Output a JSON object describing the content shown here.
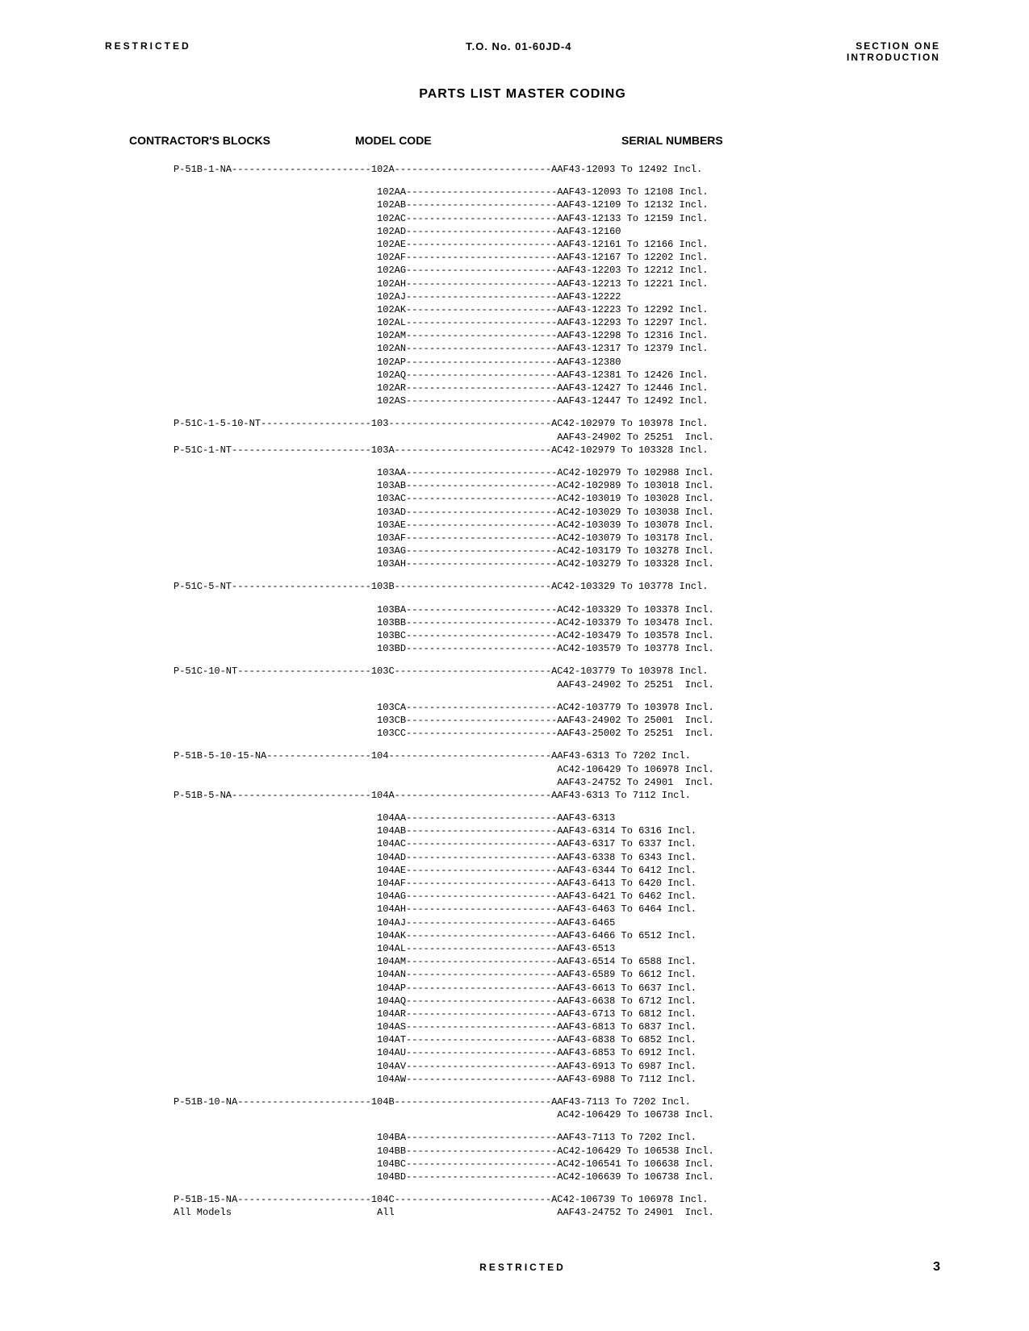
{
  "header": {
    "restricted": "RESTRICTED",
    "to_no": "T.O. No. 01-60JD-4",
    "section": "SECTION ONE",
    "intro": "INTRODUCTION"
  },
  "title": "PARTS LIST MASTER CODING",
  "columns": {
    "contractor": "CONTRACTOR'S BLOCKS",
    "model": "MODEL CODE",
    "serial": "SERIAL NUMBERS"
  },
  "lines": [
    "P-51B-1-NA------------------------102A---------------------------AAF43-12093 To 12492 Incl.",
    "",
    "                                   102AA--------------------------AAF43-12093 To 12108 Incl.",
    "                                   102AB--------------------------AAF43-12109 To 12132 Incl.",
    "                                   102AC--------------------------AAF43-12133 To 12159 Incl.",
    "                                   102AD--------------------------AAF43-12160",
    "                                   102AE--------------------------AAF43-12161 To 12166 Incl.",
    "                                   102AF--------------------------AAF43-12167 To 12202 Incl.",
    "                                   102AG--------------------------AAF43-12203 To 12212 Incl.",
    "                                   102AH--------------------------AAF43-12213 To 12221 Incl.",
    "                                   102AJ--------------------------AAF43-12222",
    "                                   102AK--------------------------AAF43-12223 To 12292 Incl.",
    "                                   102AL--------------------------AAF43-12293 To 12297 Incl.",
    "                                   102AM--------------------------AAF43-12298 To 12316 Incl.",
    "                                   102AN--------------------------AAF43-12317 To 12379 Incl.",
    "                                   102AP--------------------------AAF43-12380",
    "                                   102AQ--------------------------AAF43-12381 To 12426 Incl.",
    "                                   102AR--------------------------AAF43-12427 To 12446 Incl.",
    "                                   102AS--------------------------AAF43-12447 To 12492 Incl.",
    "",
    "P-51C-1-5-10-NT-------------------103----------------------------AC42-102979 To 103978 Incl.",
    "                                                                  AAF43-24902 To 25251  Incl.",
    "P-51C-1-NT------------------------103A---------------------------AC42-102979 To 103328 Incl.",
    "",
    "                                   103AA--------------------------AC42-102979 To 102988 Incl.",
    "                                   103AB--------------------------AC42-102989 To 103018 Incl.",
    "                                   103AC--------------------------AC42-103019 To 103028 Incl.",
    "                                   103AD--------------------------AC42-103029 To 103038 Incl.",
    "                                   103AE--------------------------AC42-103039 To 103078 Incl.",
    "                                   103AF--------------------------AC42-103079 To 103178 Incl.",
    "                                   103AG--------------------------AC42-103179 To 103278 Incl.",
    "                                   103AH--------------------------AC42-103279 To 103328 Incl.",
    "",
    "P-51C-5-NT------------------------103B---------------------------AC42-103329 To 103778 Incl.",
    "",
    "                                   103BA--------------------------AC42-103329 To 103378 Incl.",
    "                                   103BB--------------------------AC42-103379 To 103478 Incl.",
    "                                   103BC--------------------------AC42-103479 To 103578 Incl.",
    "                                   103BD--------------------------AC42-103579 To 103778 Incl.",
    "",
    "P-51C-10-NT-----------------------103C---------------------------AC42-103779 To 103978 Incl.",
    "                                                                  AAF43-24902 To 25251  Incl.",
    "",
    "                                   103CA--------------------------AC42-103779 To 103978 Incl.",
    "                                   103CB--------------------------AAF43-24902 To 25001  Incl.",
    "                                   103CC--------------------------AAF43-25002 To 25251  Incl.",
    "",
    "P-51B-5-10-15-NA------------------104----------------------------AAF43-6313 To 7202 Incl.",
    "                                                                  AC42-106429 To 106978 Incl.",
    "                                                                  AAF43-24752 To 24901  Incl.",
    "P-51B-5-NA------------------------104A---------------------------AAF43-6313 To 7112 Incl.",
    "",
    "                                   104AA--------------------------AAF43-6313",
    "                                   104AB--------------------------AAF43-6314 To 6316 Incl.",
    "                                   104AC--------------------------AAF43-6317 To 6337 Incl.",
    "                                   104AD--------------------------AAF43-6338 To 6343 Incl.",
    "                                   104AE--------------------------AAF43-6344 To 6412 Incl.",
    "                                   104AF--------------------------AAF43-6413 To 6420 Incl.",
    "                                   104AG--------------------------AAF43-6421 To 6462 Incl.",
    "                                   104AH--------------------------AAF43-6463 To 6464 Incl.",
    "                                   104AJ--------------------------AAF43-6465",
    "                                   104AK--------------------------AAF43-6466 To 6512 Incl.",
    "                                   104AL--------------------------AAF43-6513",
    "                                   104AM--------------------------AAF43-6514 To 6588 Incl.",
    "                                   104AN--------------------------AAF43-6589 To 6612 Incl.",
    "                                   104AP--------------------------AAF43-6613 To 6637 Incl.",
    "                                   104AQ--------------------------AAF43-6638 To 6712 Incl.",
    "                                   104AR--------------------------AAF43-6713 To 6812 Incl.",
    "                                   104AS--------------------------AAF43-6813 To 6837 Incl.",
    "                                   104AT--------------------------AAF43-6838 To 6852 Incl.",
    "                                   104AU--------------------------AAF43-6853 To 6912 Incl.",
    "                                   104AV--------------------------AAF43-6913 To 6987 Incl.",
    "                                   104AW--------------------------AAF43-6988 To 7112 Incl.",
    "",
    "P-51B-10-NA-----------------------104B---------------------------AAF43-7113 To 7202 Incl.",
    "                                                                  AC42-106429 To 106738 Incl.",
    "",
    "                                   104BA--------------------------AAF43-7113 To 7202 Incl.",
    "                                   104BB--------------------------AC42-106429 To 106538 Incl.",
    "                                   104BC--------------------------AC42-106541 To 106638 Incl.",
    "                                   104BD--------------------------AC42-106639 To 106738 Incl.",
    "",
    "P-51B-15-NA-----------------------104C---------------------------AC42-106739 To 106978 Incl.",
    "All Models                         All                            AAF43-24752 To 24901  Incl."
  ],
  "footer": {
    "restricted": "RESTRICTED",
    "page": "3"
  }
}
